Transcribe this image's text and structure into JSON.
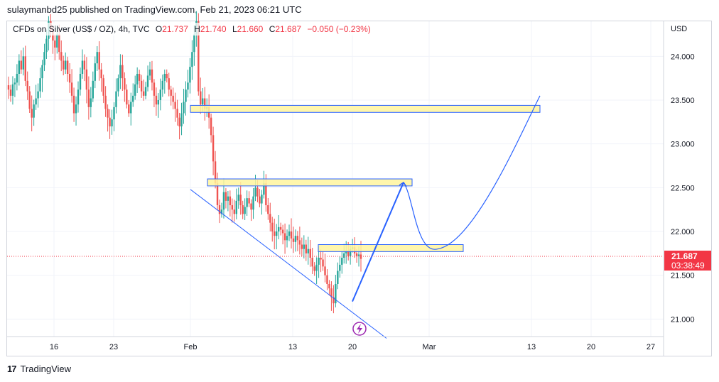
{
  "header": {
    "published_by": "sulaymanbd25 published on TradingView.com, Feb 21, 2023 06:21 UTC"
  },
  "legend": {
    "symbol": "CFDs on Silver (US$ / OZ), 4h, TVC",
    "open_label": "O",
    "open": "21.737",
    "high_label": "H",
    "high": "21.740",
    "low_label": "L",
    "low": "21.660",
    "close_label": "C",
    "close": "21.687",
    "change": "−0.050 (−0.23%)"
  },
  "footer": {
    "brand": "TradingView",
    "logo_text": "17"
  },
  "colors": {
    "up": "#26a69a",
    "down": "#ef5350",
    "zone_fill": "#fff59d",
    "zone_border": "#2962ff",
    "drawing": "#2962ff",
    "last_price": "#f23645",
    "grid": "#f0f3fa"
  },
  "chart_data": {
    "type": "candlestick",
    "currency": "USD",
    "interval": "4h",
    "ylim": [
      20.8,
      24.4
    ],
    "y_ticks": [
      "24.000",
      "23.500",
      "23.000",
      "22.500",
      "22.000",
      "21.500",
      "21.000"
    ],
    "x_ticks": [
      "16",
      "23",
      "Feb",
      "13",
      "20",
      "Mar",
      "13",
      "20",
      "27"
    ],
    "last_price": {
      "value": "21.687",
      "countdown": "03:38:49"
    },
    "closes": [
      23.62,
      23.55,
      23.68,
      23.7,
      23.8,
      23.95,
      23.85,
      24.0,
      23.72,
      23.6,
      23.4,
      23.3,
      23.45,
      23.52,
      23.6,
      23.75,
      23.9,
      24.05,
      24.2,
      24.4,
      24.3,
      24.18,
      24.1,
      24.25,
      24.05,
      23.95,
      23.85,
      23.95,
      23.8,
      23.7,
      23.55,
      23.35,
      23.45,
      23.62,
      23.8,
      23.95,
      23.85,
      23.62,
      23.42,
      23.52,
      23.72,
      23.92,
      24.05,
      23.85,
      23.75,
      23.55,
      23.4,
      23.3,
      23.2,
      23.28,
      23.42,
      23.6,
      23.75,
      23.9,
      23.75,
      23.62,
      23.45,
      23.35,
      23.48,
      23.55,
      23.68,
      23.8,
      23.72,
      23.6,
      23.55,
      23.65,
      23.78,
      23.85,
      23.7,
      23.55,
      23.45,
      23.5,
      23.62,
      23.72,
      23.8,
      23.75,
      23.62,
      23.55,
      23.48,
      23.4,
      23.3,
      23.2,
      23.35,
      23.48,
      23.62,
      23.7,
      23.88,
      24.05,
      24.25,
      24.4,
      23.6,
      23.45,
      23.52,
      23.4,
      23.42,
      23.3,
      23.1,
      22.8,
      22.55,
      22.3,
      22.2,
      22.25,
      22.45,
      22.35,
      22.4,
      22.3,
      22.25,
      22.2,
      22.35,
      22.42,
      22.3,
      22.2,
      22.28,
      22.38,
      22.32,
      22.25,
      22.4,
      22.5,
      22.4,
      22.32,
      22.42,
      22.55,
      22.3,
      22.2,
      22.1,
      22.0,
      21.95,
      22.0,
      22.05,
      22.02,
      21.98,
      21.9,
      21.95,
      22.0,
      21.92,
      21.88,
      21.95,
      21.9,
      21.85,
      21.8,
      21.85,
      21.75,
      21.8,
      21.7,
      21.6,
      21.55,
      21.62,
      21.7,
      21.68,
      21.6,
      21.5,
      21.4,
      21.35,
      21.25,
      21.18,
      21.4,
      21.55,
      21.62,
      21.7,
      21.75,
      21.78,
      21.72,
      21.8,
      21.82,
      21.75,
      21.72,
      21.737,
      21.687
    ],
    "zones": [
      {
        "price_from": 23.36,
        "price_to": 23.44,
        "from": "Feb 1",
        "to": "Mar 14"
      },
      {
        "price_from": 22.52,
        "price_to": 22.6,
        "from": "Feb 3",
        "to": "Feb 27"
      },
      {
        "price_from": 21.77,
        "price_to": 21.85,
        "from": "Feb 16",
        "to": "Mar 5"
      }
    ],
    "trendline": {
      "from": {
        "date": "Feb 1",
        "price": 22.48
      },
      "to": {
        "date": "Feb 24",
        "price": 20.78
      }
    },
    "projection": [
      {
        "date": "Feb 20",
        "price": 21.2
      },
      {
        "date": "Feb 26",
        "price": 22.56
      },
      {
        "date": "Mar 2",
        "price": 21.8
      },
      {
        "date": "Mar 14",
        "price": 23.55
      }
    ]
  }
}
